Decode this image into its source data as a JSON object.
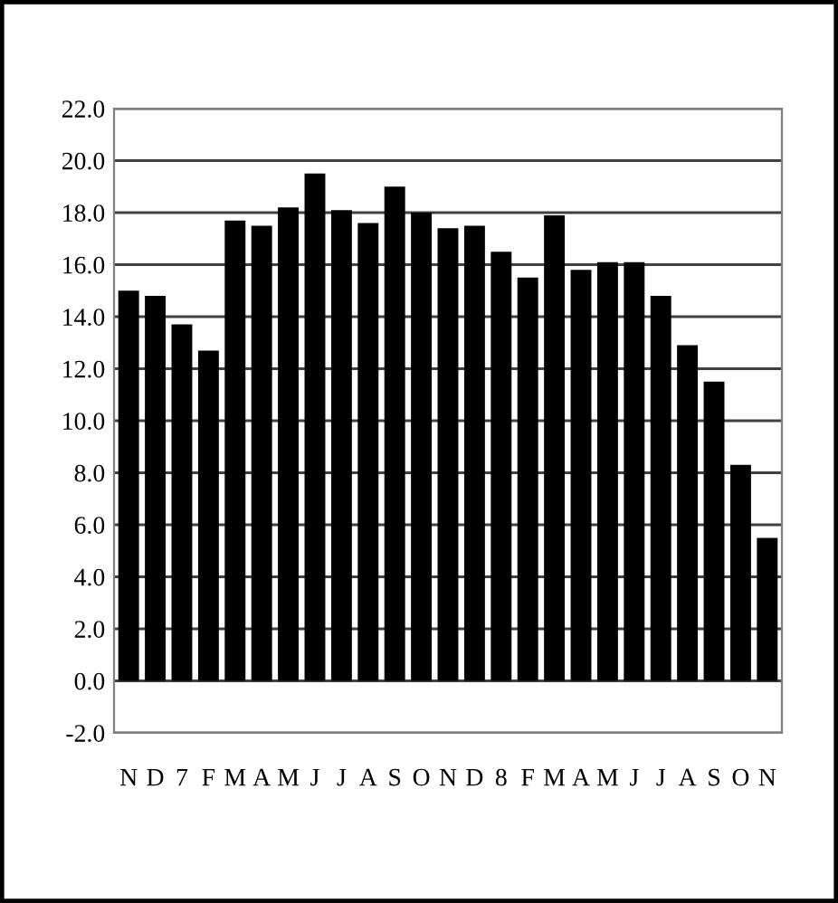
{
  "chart_data": {
    "type": "bar",
    "categories": [
      "N",
      "D",
      "7",
      "F",
      "M",
      "A",
      "M",
      "J",
      "J",
      "A",
      "S",
      "O",
      "N",
      "D",
      "8",
      "F",
      "M",
      "A",
      "M",
      "J",
      "J",
      "A",
      "S",
      "O",
      "N"
    ],
    "values": [
      15.0,
      14.8,
      13.7,
      12.7,
      17.7,
      17.5,
      18.2,
      19.5,
      18.1,
      17.6,
      19.0,
      18.0,
      17.4,
      17.5,
      16.5,
      15.5,
      17.9,
      15.8,
      16.1,
      16.1,
      14.8,
      12.9,
      11.5,
      8.3,
      5.5
    ],
    "color": "#000000",
    "ylim": [
      -2,
      22
    ],
    "yticks": [
      {
        "value": -2,
        "label": "-2.0"
      },
      {
        "value": 0,
        "label": "0.0"
      },
      {
        "value": 2,
        "label": "2.0"
      },
      {
        "value": 4,
        "label": "4.0"
      },
      {
        "value": 6,
        "label": "6.0"
      },
      {
        "value": 8,
        "label": "8.0"
      },
      {
        "value": 10,
        "label": "10.0"
      },
      {
        "value": 12,
        "label": "12.0"
      },
      {
        "value": 14,
        "label": "14.0"
      },
      {
        "value": 16,
        "label": "16.0"
      },
      {
        "value": 18,
        "label": "18.0"
      },
      {
        "value": 20,
        "label": "20.0"
      },
      {
        "value": 22,
        "label": "22.0"
      }
    ],
    "grid": "y"
  }
}
